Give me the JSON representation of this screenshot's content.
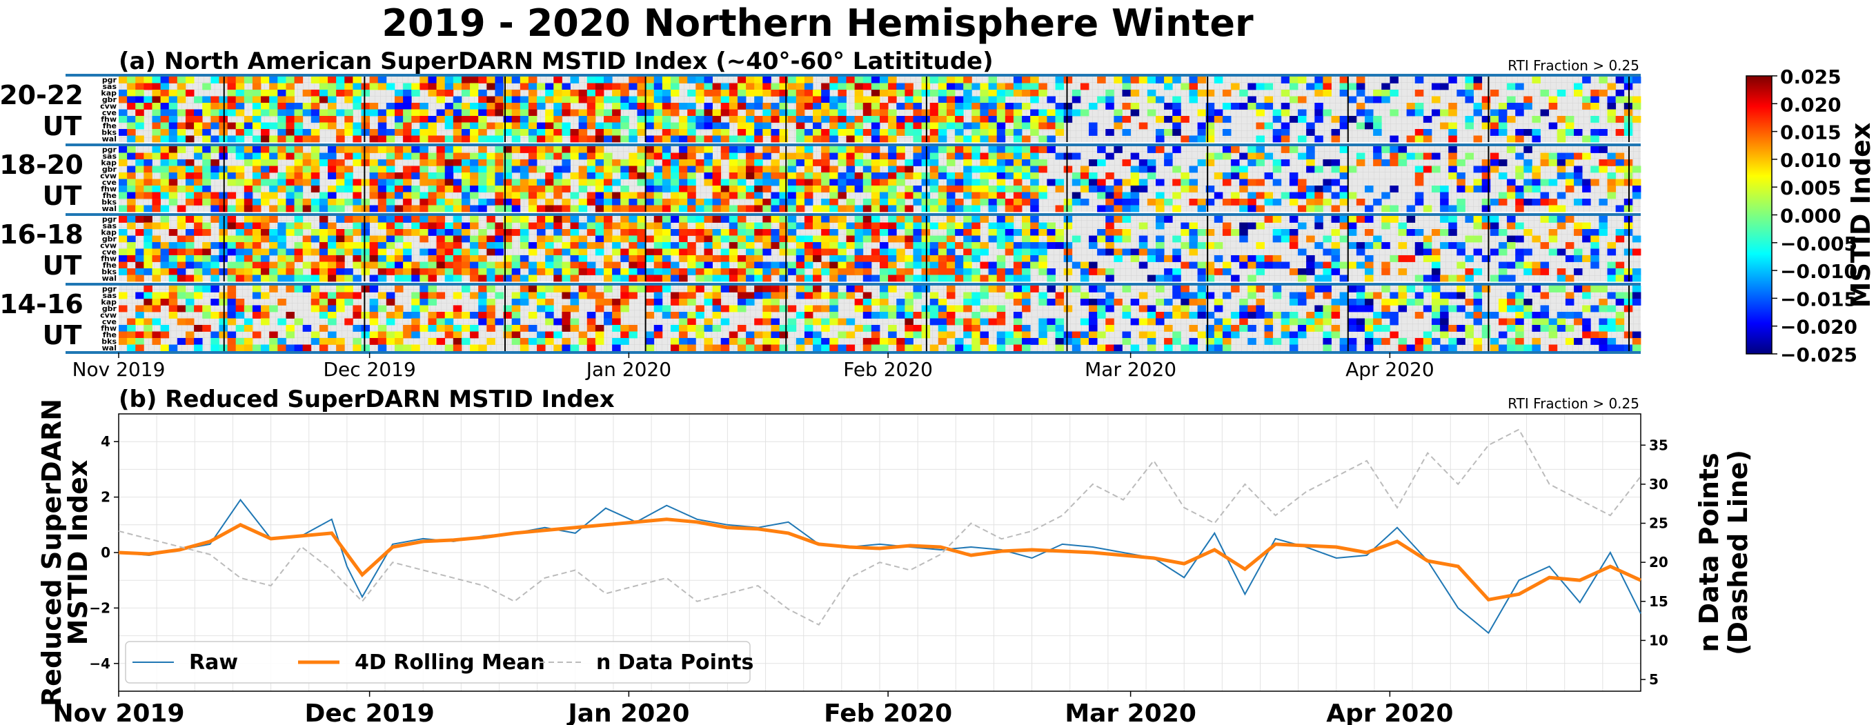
{
  "figure": {
    "title": "2019 - 2020 Northern Hemisphere Winter"
  },
  "colors": {
    "raw": "#1f77b4",
    "rolling": "#ff7f0e",
    "ndata": "#bbbbbb",
    "separator": "#1f77b4",
    "missing": "#e8e8e8"
  },
  "chart_data": [
    {
      "type": "heatmap",
      "title": "(a) North American SuperDARN MSTID Index (~40°-60° Latititude)",
      "annotation": "RTI Fraction > 0.25",
      "date_range": [
        "2019-11-01",
        "2020-04-30"
      ],
      "time_blocks": [
        "20-22\nUT",
        "18-20\nUT",
        "16-18\nUT",
        "14-16\nUT"
      ],
      "radars": [
        "pgr",
        "sas",
        "kap",
        "gbr",
        "cvw",
        "cve",
        "fhw",
        "fhe",
        "bks",
        "wal"
      ],
      "x_ticks": [
        "Nov 2019",
        "Dec 2019",
        "Jan 2020",
        "Feb 2020",
        "Mar 2020",
        "Apr 2020"
      ],
      "colorbar": {
        "label": "MSTID Index",
        "colormap": "jet",
        "range": [
          -0.025,
          0.025
        ],
        "ticks": [
          "0.025",
          "0.020",
          "0.015",
          "0.010",
          "0.005",
          "0.000",
          "−0.005",
          "−0.010",
          "−0.015",
          "−0.020",
          "−0.025"
        ]
      }
    },
    {
      "type": "line",
      "title": "(b) Reduced SuperDARN MSTID Index",
      "annotation": "RTI Fraction > 0.25",
      "ylabel": "Reduced SuperDARN\nMSTID Index",
      "y2label": "n Data Points\n(Dashed Line)",
      "x_ticks": [
        "Nov 2019",
        "Dec 2019",
        "Jan 2020",
        "Feb 2020",
        "Mar 2020",
        "Apr 2020"
      ],
      "ylim": [
        -5,
        5
      ],
      "y_ticks": [
        "4",
        "2",
        "0",
        "−2",
        "−4"
      ],
      "y2lim": [
        3.5,
        39
      ],
      "y2_ticks": [
        "35",
        "30",
        "25",
        "20",
        "15",
        "10",
        "5"
      ],
      "legend": {
        "placement": "lower-left"
      },
      "series": [
        {
          "name": "Raw",
          "style": "solid",
          "x": [
            0,
            4,
            8,
            12,
            16,
            20,
            24,
            28,
            30,
            32,
            36,
            40,
            44,
            48,
            52,
            56,
            60,
            64,
            68,
            72,
            76,
            80,
            84,
            88,
            92,
            96,
            100,
            104,
            108,
            112,
            116,
            120,
            124,
            128,
            132,
            136,
            140,
            144,
            148,
            152,
            156,
            160,
            164,
            168,
            172,
            176,
            180,
            184,
            188,
            192,
            196,
            200
          ],
          "y": [
            0,
            -0.1,
            0.1,
            0.3,
            1.9,
            0.5,
            0.6,
            1.2,
            -0.5,
            -1.6,
            0.3,
            0.5,
            0.4,
            0.6,
            0.7,
            0.9,
            0.7,
            1.6,
            1.1,
            1.7,
            1.2,
            1.0,
            0.9,
            1.1,
            0.3,
            0.2,
            0.3,
            0.2,
            0.1,
            0.2,
            0.1,
            -0.2,
            0.3,
            0.2,
            0.0,
            -0.2,
            -0.9,
            0.7,
            -1.5,
            0.5,
            0.2,
            -0.2,
            -0.1,
            0.9,
            -0.3,
            -2.0,
            -2.9,
            -1.0,
            -0.5,
            -1.8,
            0.0,
            -2.2
          ]
        },
        {
          "name": "4D Rolling Mean",
          "style": "solid",
          "x": [
            0,
            4,
            8,
            12,
            16,
            20,
            24,
            28,
            32,
            36,
            40,
            44,
            48,
            52,
            56,
            60,
            64,
            68,
            72,
            76,
            80,
            84,
            88,
            92,
            96,
            100,
            104,
            108,
            112,
            116,
            120,
            124,
            128,
            132,
            136,
            140,
            144,
            148,
            152,
            156,
            160,
            164,
            168,
            172,
            176,
            180,
            184,
            188,
            192,
            196,
            200
          ],
          "y": [
            0,
            -0.05,
            0.1,
            0.4,
            1.0,
            0.5,
            0.6,
            0.7,
            -0.8,
            0.2,
            0.4,
            0.45,
            0.55,
            0.7,
            0.8,
            0.9,
            1.0,
            1.1,
            1.2,
            1.1,
            0.9,
            0.85,
            0.7,
            0.3,
            0.2,
            0.15,
            0.25,
            0.2,
            -0.1,
            0.05,
            0.1,
            0.05,
            0.0,
            -0.1,
            -0.2,
            -0.4,
            0.1,
            -0.6,
            0.3,
            0.25,
            0.2,
            0.0,
            0.4,
            -0.3,
            -0.5,
            -1.7,
            -1.5,
            -0.9,
            -1.0,
            -0.5,
            -1.0
          ]
        },
        {
          "name": "n Data Points",
          "style": "dashed",
          "axis": "right",
          "x": [
            0,
            4,
            8,
            12,
            16,
            20,
            24,
            28,
            32,
            36,
            40,
            44,
            48,
            52,
            56,
            60,
            64,
            68,
            72,
            76,
            80,
            84,
            88,
            92,
            96,
            100,
            104,
            108,
            112,
            116,
            120,
            124,
            128,
            132,
            136,
            140,
            144,
            148,
            152,
            156,
            160,
            164,
            168,
            172,
            176,
            180,
            184,
            188,
            192,
            196,
            200
          ],
          "y": [
            24,
            23,
            22,
            21,
            18,
            17,
            22,
            19,
            15,
            20,
            19,
            18,
            17,
            15,
            18,
            19,
            16,
            17,
            18,
            15,
            16,
            17,
            14,
            12,
            18,
            20,
            19,
            21,
            25,
            23,
            24,
            26,
            30,
            28,
            33,
            27,
            25,
            30,
            26,
            29,
            31,
            33,
            27,
            34,
            30,
            35,
            37,
            30,
            28,
            26,
            31
          ]
        }
      ]
    }
  ]
}
